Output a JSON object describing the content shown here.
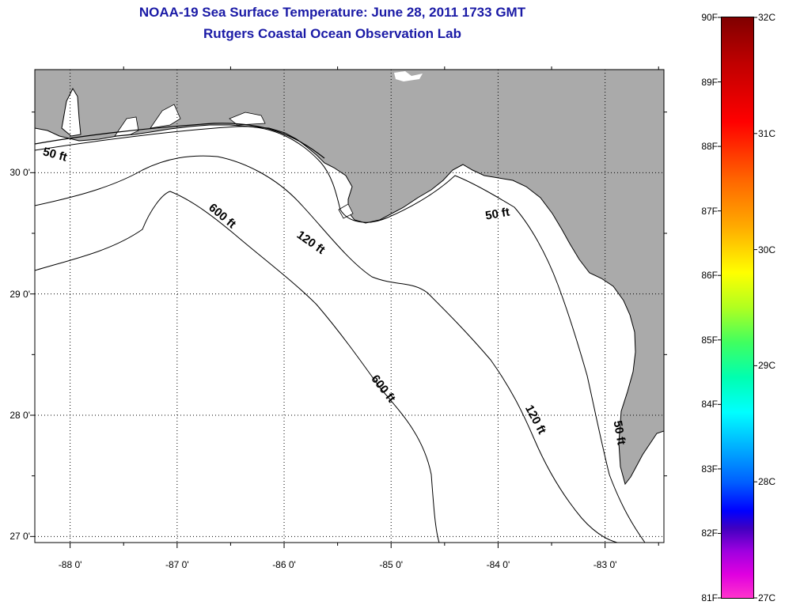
{
  "title": {
    "line1": "NOAA-19 Sea Surface Temperature:  June 28, 2011 1733 GMT",
    "line2": "Rutgers Coastal Ocean Observation Lab"
  },
  "map": {
    "lon_range": [
      -88.33,
      -82.45
    ],
    "lat_range": [
      26.95,
      30.85
    ],
    "land_color": "#aaaaaa",
    "water_color": "#ffffff",
    "grid": "dotted",
    "lon_ticks": [
      {
        "value": -88,
        "label": "-88 0'"
      },
      {
        "value": -87,
        "label": "-87 0'"
      },
      {
        "value": -86,
        "label": "-86 0'"
      },
      {
        "value": -85,
        "label": "-85 0'"
      },
      {
        "value": -84,
        "label": "-84 0'"
      },
      {
        "value": -83,
        "label": "-83 0'"
      }
    ],
    "lat_ticks": [
      {
        "value": 30,
        "label": "30 0'"
      },
      {
        "value": 29,
        "label": "29 0'"
      },
      {
        "value": 28,
        "label": "28 0'"
      },
      {
        "value": 27,
        "label": "27 0'"
      }
    ],
    "contour_labels": [
      {
        "text": "50 ft",
        "lon": -88.15,
        "lat": 30.12,
        "angle": 15
      },
      {
        "text": "50 ft",
        "lon": -84.0,
        "lat": 29.63,
        "angle": -10
      },
      {
        "text": "50 ft",
        "lon": -82.9,
        "lat": 27.85,
        "angle": 80
      },
      {
        "text": "120 ft",
        "lon": -85.77,
        "lat": 29.4,
        "angle": 35
      },
      {
        "text": "120 ft",
        "lon": -83.68,
        "lat": 27.95,
        "angle": 62
      },
      {
        "text": "600 ft",
        "lon": -86.6,
        "lat": 29.62,
        "angle": 40
      },
      {
        "text": "600 ft",
        "lon": -85.1,
        "lat": 28.2,
        "angle": 52
      }
    ]
  },
  "colorbar": {
    "f_labels": [
      "90F",
      "89F",
      "88F",
      "87F",
      "86F",
      "85F",
      "84F",
      "83F",
      "82F",
      "81F"
    ],
    "c_labels": [
      "32C",
      "31C",
      "30C",
      "29C",
      "28C",
      "27C"
    ],
    "f_range": [
      81,
      90
    ],
    "c_range": [
      27,
      32
    ]
  }
}
